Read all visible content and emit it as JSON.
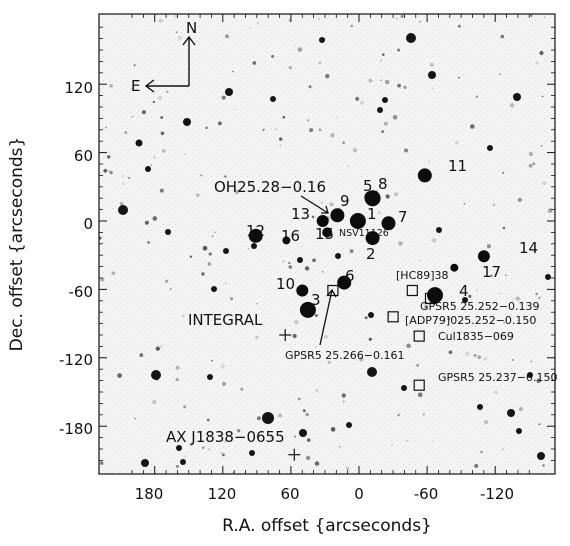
{
  "figure": {
    "xlabel": "R.A. offset {arcseconds}",
    "ylabel": "Dec. offset {arcseconds}",
    "x_ticks": [
      "180",
      "120",
      "60",
      "0",
      "-60",
      "-120"
    ],
    "y_ticks": [
      "120",
      "60",
      "0",
      "-60",
      "-120",
      "-180"
    ],
    "compass": {
      "north": "N",
      "east": "E"
    },
    "star_labels": [
      "11",
      "5",
      "8",
      "9",
      "13",
      "1",
      "7",
      "12",
      "16",
      "15",
      "2",
      "14",
      "17",
      "10",
      "6",
      "3",
      "4"
    ],
    "source_labels": {
      "oh": "OH25.28−0.16",
      "nsv": "NSV11126",
      "hc89": "[HC89]38",
      "gpsr_139": "GPSR5 25.252−0.139",
      "adp79": "[ADP79]025.252−0.150",
      "cul": "Cul1835−069",
      "gpsr_150": "GPSR5 25.237−0.150",
      "gpsr_161": "GPSR5 25.266−0.161",
      "integral": "INTEGRAL",
      "ax": "AX J1838−0655"
    }
  },
  "chart_data": {
    "type": "scatter",
    "xlabel": "R.A. offset {arcseconds}",
    "ylabel": "Dec. offset {arcseconds}",
    "xlim": [
      210,
      -165
    ],
    "ylim": [
      -218,
      183
    ],
    "x_ticks": [
      180,
      120,
      60,
      0,
      -60,
      -120
    ],
    "y_ticks": [
      120,
      60,
      0,
      -60,
      -120,
      -180
    ],
    "labeled_stars": [
      {
        "label": "11",
        "x": -58,
        "y": 40
      },
      {
        "label": "5",
        "x": -12,
        "y": 20
      },
      {
        "label": "8",
        "x": -10,
        "y": 21
      },
      {
        "label": "9",
        "x": 19,
        "y": 5
      },
      {
        "label": "13",
        "x": 32,
        "y": 0
      },
      {
        "label": "1",
        "x": 1,
        "y": 0
      },
      {
        "label": "7",
        "x": -26,
        "y": -2
      },
      {
        "label": "12",
        "x": 91,
        "y": -13
      },
      {
        "label": "16",
        "x": 64,
        "y": -17
      },
      {
        "label": "15",
        "x": 28,
        "y": -10
      },
      {
        "label": "2",
        "x": -12,
        "y": -15
      },
      {
        "label": "14",
        "x": -110,
        "y": -31
      },
      {
        "label": "17",
        "x": -84,
        "y": -41
      },
      {
        "label": "10",
        "x": 50,
        "y": -61
      },
      {
        "label": "6",
        "x": 13,
        "y": -54
      },
      {
        "label": "3",
        "x": 45,
        "y": -78
      },
      {
        "label": "4",
        "x": -67,
        "y": -65
      }
    ],
    "markers": [
      {
        "label": "INTEGRAL",
        "x": 65,
        "y": -100,
        "shape": "cross"
      },
      {
        "label": "AX J1838−0655",
        "x": 57,
        "y": -205,
        "shape": "cross"
      },
      {
        "label": "[HC89]38",
        "x": -47,
        "y": -61,
        "shape": "box"
      },
      {
        "label": "GPSR5 25.252−0.139",
        "x": -63,
        "y": -68,
        "shape": "box"
      },
      {
        "label": "[ADP79]025.252−0.150",
        "x": -30,
        "y": -84,
        "shape": "box"
      },
      {
        "label": "Cul1835−069",
        "x": -53,
        "y": -101,
        "shape": "box"
      },
      {
        "label": "GPSR5 25.237−0.150",
        "x": -53,
        "y": -144,
        "shape": "box"
      },
      {
        "label": "GPSR5 25.266−0.161",
        "x": 23,
        "y": -61,
        "shape": "box"
      }
    ]
  }
}
